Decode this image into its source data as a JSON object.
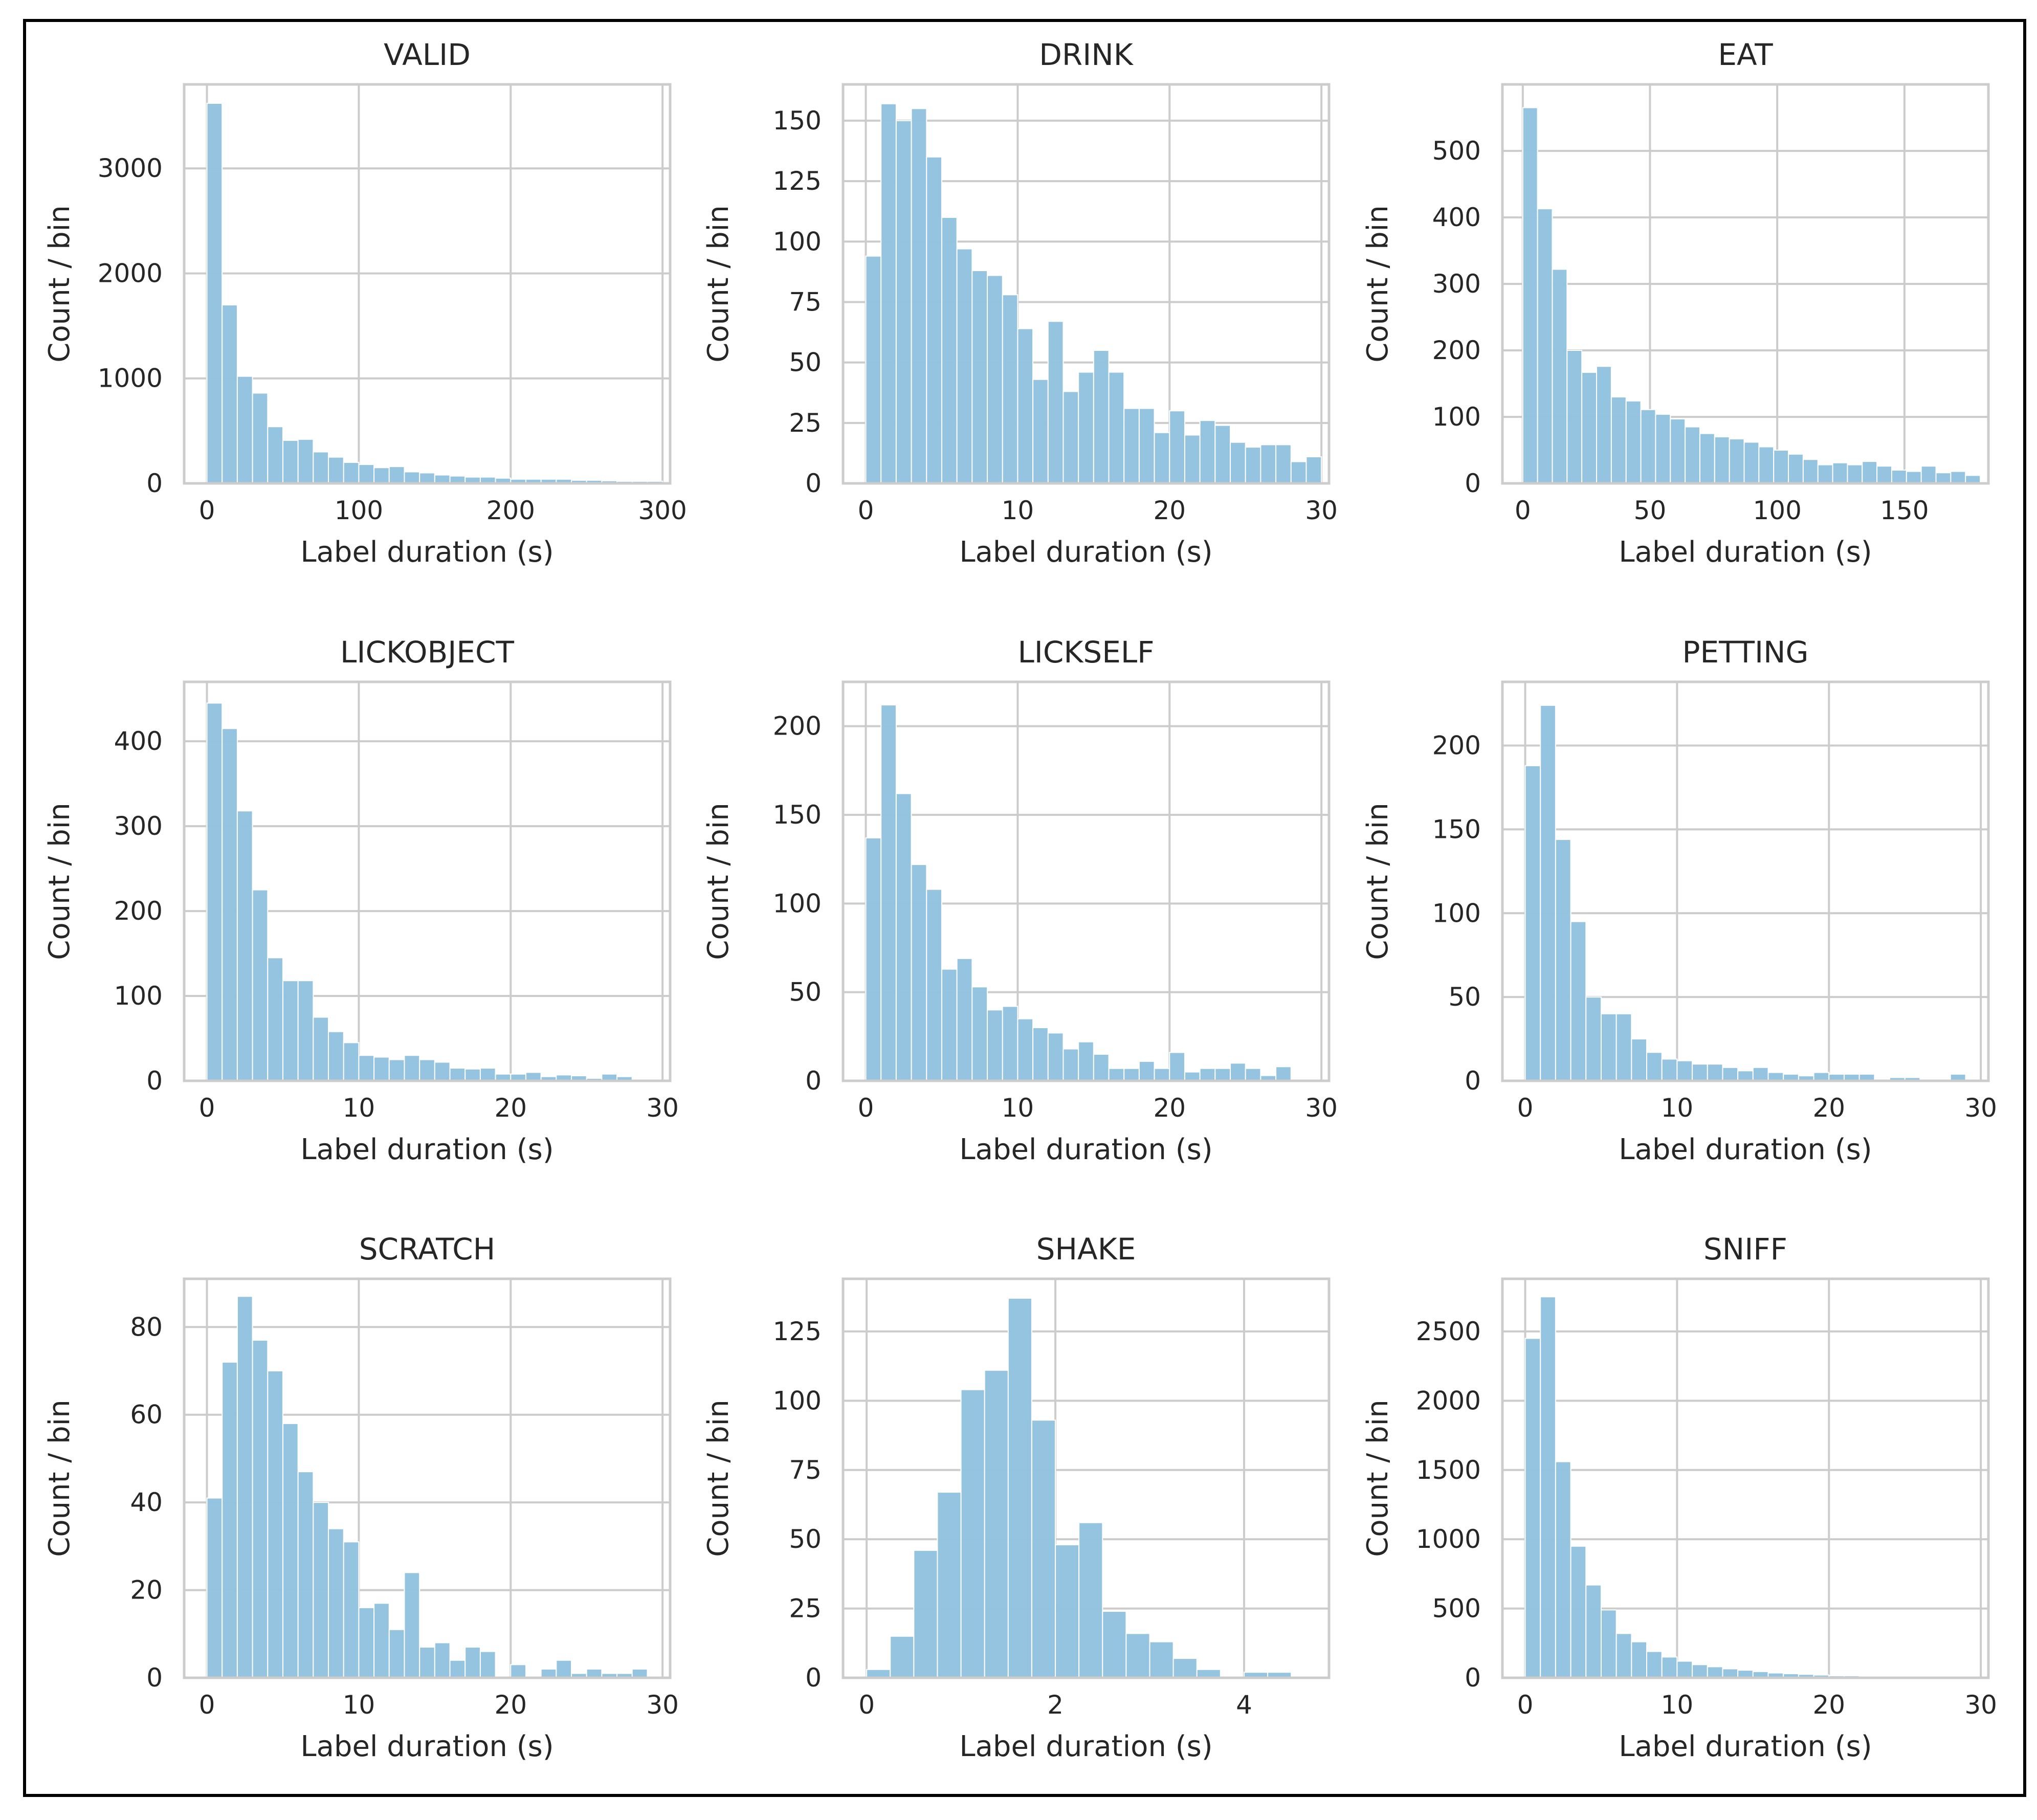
{
  "figure": {
    "common_xlabel": "Label duration (s)",
    "common_ylabel": "Count / bin"
  },
  "colors": {
    "bar": "#93c3e0",
    "grid": "#cccccc",
    "border": "#000000",
    "text": "#262626"
  },
  "chart_data": [
    {
      "type": "bar",
      "title": "VALID",
      "xlabel": "Label duration (s)",
      "ylabel": "Count / bin",
      "xlim": [
        -15,
        305
      ],
      "ylim": [
        0,
        3800
      ],
      "xticks": [
        0,
        100,
        200,
        300
      ],
      "yticks": [
        0,
        1000,
        2000,
        3000
      ],
      "bin_start": 0,
      "bin_width": 10,
      "values": [
        3620,
        1700,
        1020,
        860,
        540,
        410,
        420,
        300,
        250,
        200,
        180,
        150,
        160,
        110,
        100,
        80,
        70,
        60,
        60,
        50,
        40,
        40,
        40,
        40,
        30,
        30,
        25,
        20,
        20,
        20
      ]
    },
    {
      "type": "bar",
      "title": "DRINK",
      "xlabel": "Label duration (s)",
      "ylabel": "Count / bin",
      "xlim": [
        -1.5,
        30.5
      ],
      "ylim": [
        0,
        165
      ],
      "xticks": [
        0,
        10,
        20,
        30
      ],
      "yticks": [
        0,
        25,
        50,
        75,
        100,
        125,
        150
      ],
      "bin_start": 0,
      "bin_width": 1,
      "values": [
        94,
        157,
        150,
        155,
        135,
        110,
        97,
        88,
        86,
        78,
        64,
        43,
        67,
        38,
        46,
        55,
        46,
        31,
        31,
        21,
        30,
        20,
        26,
        24,
        17,
        15,
        16,
        16,
        9,
        11
      ]
    },
    {
      "type": "bar",
      "title": "EAT",
      "xlabel": "Label duration (s)",
      "ylabel": "Count / bin",
      "xlim": [
        -8,
        183
      ],
      "ylim": [
        0,
        600
      ],
      "xticks": [
        0,
        50,
        100,
        150
      ],
      "yticks": [
        0,
        100,
        200,
        300,
        400,
        500
      ],
      "bin_start": 0,
      "bin_width": 5.8,
      "values": [
        565,
        413,
        322,
        200,
        167,
        176,
        130,
        124,
        111,
        104,
        97,
        85,
        75,
        70,
        67,
        62,
        55,
        50,
        44,
        36,
        28,
        31,
        28,
        33,
        26,
        20,
        18,
        26,
        16,
        18,
        12
      ]
    },
    {
      "type": "bar",
      "title": "LICKOBJECT",
      "xlabel": "Label duration (s)",
      "ylabel": "Count / bin",
      "xlim": [
        -1.5,
        30.5
      ],
      "ylim": [
        0,
        470
      ],
      "xticks": [
        0,
        10,
        20,
        30
      ],
      "yticks": [
        0,
        100,
        200,
        300,
        400
      ],
      "bin_start": 0,
      "bin_width": 1,
      "values": [
        445,
        415,
        318,
        225,
        145,
        118,
        118,
        75,
        58,
        45,
        30,
        28,
        25,
        30,
        25,
        22,
        15,
        14,
        15,
        8,
        8,
        10,
        5,
        7,
        6,
        3,
        8,
        5,
        0,
        0
      ]
    },
    {
      "type": "bar",
      "title": "LICKSELF",
      "xlabel": "Label duration (s)",
      "ylabel": "Count / bin",
      "xlim": [
        -1.5,
        30.5
      ],
      "ylim": [
        0,
        225
      ],
      "xticks": [
        0,
        10,
        20,
        30
      ],
      "yticks": [
        0,
        50,
        100,
        150,
        200
      ],
      "bin_start": 0,
      "bin_width": 1,
      "values": [
        137,
        212,
        162,
        122,
        108,
        63,
        69,
        53,
        40,
        42,
        35,
        30,
        27,
        18,
        22,
        15,
        7,
        7,
        11,
        7,
        16,
        5,
        7,
        7,
        10,
        7,
        3,
        8,
        0,
        0
      ]
    },
    {
      "type": "bar",
      "title": "PETTING",
      "xlabel": "Label duration (s)",
      "ylabel": "Count / bin",
      "xlim": [
        -1.5,
        30.5
      ],
      "ylim": [
        0,
        238
      ],
      "xticks": [
        0,
        10,
        20,
        30
      ],
      "yticks": [
        0,
        50,
        100,
        150,
        200
      ],
      "bin_start": 0,
      "bin_width": 1,
      "values": [
        188,
        224,
        144,
        95,
        50,
        40,
        40,
        25,
        17,
        13,
        12,
        10,
        10,
        8,
        6,
        8,
        5,
        4,
        3,
        5,
        4,
        4,
        4,
        1,
        2,
        2,
        1,
        1,
        4,
        0
      ]
    },
    {
      "type": "bar",
      "title": "SCRATCH",
      "xlabel": "Label duration (s)",
      "ylabel": "Count / bin",
      "xlim": [
        -1.5,
        30.5
      ],
      "ylim": [
        0,
        91
      ],
      "xticks": [
        0,
        10,
        20,
        30
      ],
      "yticks": [
        0,
        20,
        40,
        60,
        80
      ],
      "bin_start": 0,
      "bin_width": 1,
      "values": [
        41,
        72,
        87,
        77,
        70,
        58,
        47,
        40,
        34,
        31,
        16,
        17,
        11,
        24,
        7,
        8,
        4,
        7,
        6,
        0,
        3,
        0,
        2,
        4,
        1,
        2,
        1,
        1,
        2,
        0
      ]
    },
    {
      "type": "bar",
      "title": "SHAKE",
      "xlabel": "Label duration (s)",
      "ylabel": "Count / bin",
      "xlim": [
        -0.25,
        4.9
      ],
      "ylim": [
        0,
        144
      ],
      "xticks": [
        0,
        2,
        4
      ],
      "yticks": [
        0,
        25,
        50,
        75,
        100,
        125
      ],
      "bin_start": 0,
      "bin_width": 0.25,
      "values": [
        3,
        15,
        46,
        67,
        104,
        111,
        137,
        93,
        48,
        56,
        24,
        16,
        13,
        7,
        3,
        0,
        2,
        2,
        0
      ]
    },
    {
      "type": "bar",
      "title": "SNIFF",
      "xlabel": "Label duration (s)",
      "ylabel": "Count / bin",
      "xlim": [
        -1.5,
        30.5
      ],
      "ylim": [
        0,
        2880
      ],
      "xticks": [
        0,
        10,
        20,
        30
      ],
      "yticks": [
        0,
        500,
        1000,
        1500,
        2000,
        2500
      ],
      "bin_start": 0,
      "bin_width": 1,
      "values": [
        2450,
        2750,
        1560,
        950,
        670,
        490,
        320,
        260,
        190,
        150,
        120,
        95,
        80,
        65,
        55,
        45,
        35,
        30,
        25,
        20,
        15,
        15,
        12,
        10,
        8,
        6,
        5,
        4,
        3,
        2
      ]
    }
  ]
}
